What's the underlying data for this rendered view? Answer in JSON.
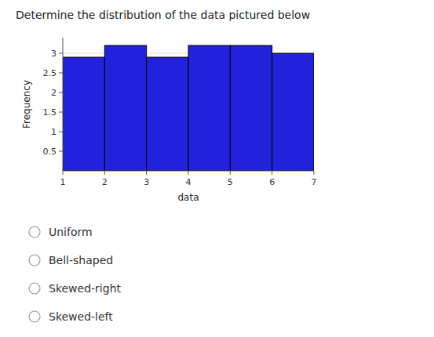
{
  "chart_data": {
    "type": "histogram",
    "title": "Determine the distribution of the data pictured below",
    "x_label": "data",
    "y_label": "Frequency",
    "bins": [
      1,
      2,
      3,
      4,
      5,
      6,
      7
    ],
    "values": [
      2.9,
      3.2,
      2.9,
      3.2,
      3.2,
      3.0
    ],
    "color": "#2222DD",
    "xlim": [
      1,
      7
    ],
    "xticks": [
      1,
      2,
      3,
      4,
      5,
      6,
      7
    ],
    "ylim": [
      0,
      3.4
    ],
    "yticks": [
      0.5,
      1,
      1.5,
      2,
      2.5,
      3
    ],
    "grid": true,
    "annotations": [
      "Uniform",
      "Bell-shaped",
      "Skewed-right",
      "Skewed-left"
    ]
  }
}
